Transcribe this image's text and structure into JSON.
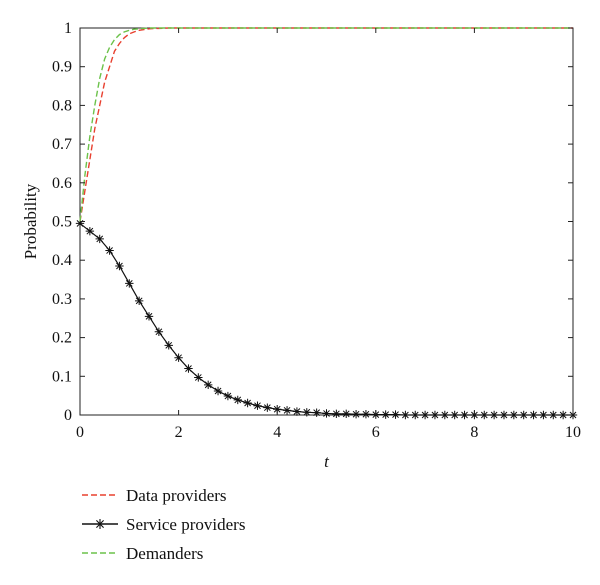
{
  "chart_data": {
    "type": "line",
    "xlabel": "t",
    "ylabel": "Probability",
    "xlim": [
      0,
      10
    ],
    "ylim": [
      0,
      1
    ],
    "x_ticks": [
      "0",
      "2",
      "4",
      "6",
      "8",
      "10"
    ],
    "y_ticks": [
      "0",
      "0.1",
      "0.2",
      "0.3",
      "0.4",
      "0.5",
      "0.6",
      "0.7",
      "0.8",
      "0.9",
      "1"
    ],
    "grid": false,
    "legend_position": "bottom-left, below plot",
    "series": [
      {
        "name": "Data providers",
        "color": "#e8402f",
        "style": "dashed",
        "x": [
          0,
          0.1,
          0.2,
          0.3,
          0.4,
          0.5,
          0.6,
          0.7,
          0.8,
          0.9,
          1.0,
          1.1,
          1.2,
          1.3,
          1.4,
          1.6,
          1.8,
          2.0,
          3.0,
          4.0,
          5.0,
          6.0,
          7.0,
          8.0,
          9.0,
          10.0
        ],
        "y": [
          0.5,
          0.58,
          0.66,
          0.74,
          0.8,
          0.86,
          0.9,
          0.94,
          0.96,
          0.975,
          0.985,
          0.99,
          0.994,
          0.996,
          0.998,
          0.999,
          1.0,
          1.0,
          1.0,
          1.0,
          1.0,
          1.0,
          1.0,
          1.0,
          1.0,
          1.0
        ]
      },
      {
        "name": "Service providers",
        "color": "#111111",
        "style": "solid-star",
        "x": [
          0,
          0.2,
          0.4,
          0.6,
          0.8,
          1.0,
          1.2,
          1.4,
          1.6,
          1.8,
          2.0,
          2.2,
          2.4,
          2.6,
          2.8,
          3.0,
          3.2,
          3.4,
          3.6,
          3.8,
          4.0,
          4.2,
          4.4,
          4.6,
          4.8,
          5.0,
          5.2,
          5.4,
          5.6,
          5.8,
          6.0,
          6.2,
          6.4,
          6.6,
          6.8,
          7.0,
          7.2,
          7.4,
          7.6,
          7.8,
          8.0,
          8.2,
          8.4,
          8.6,
          8.8,
          9.0,
          9.2,
          9.4,
          9.6,
          9.8,
          10.0
        ],
        "y": [
          0.495,
          0.475,
          0.455,
          0.425,
          0.385,
          0.34,
          0.295,
          0.255,
          0.215,
          0.18,
          0.148,
          0.12,
          0.097,
          0.078,
          0.062,
          0.049,
          0.039,
          0.031,
          0.024,
          0.019,
          0.015,
          0.012,
          0.009,
          0.007,
          0.006,
          0.004,
          0.003,
          0.003,
          0.002,
          0.002,
          0.001,
          0.001,
          0.001,
          0.0,
          0.0,
          0.0,
          0.0,
          0.0,
          0.0,
          0.0,
          0.0,
          0.0,
          0.0,
          0.0,
          0.0,
          0.0,
          0.0,
          0.0,
          0.0,
          0.0,
          0.0
        ]
      },
      {
        "name": "Demanders",
        "color": "#6cc24a",
        "style": "dashed",
        "x": [
          0,
          0.1,
          0.2,
          0.3,
          0.4,
          0.5,
          0.6,
          0.7,
          0.8,
          0.9,
          1.0,
          1.1,
          1.2,
          1.3,
          1.4,
          1.6,
          1.8,
          2.0,
          3.0,
          4.0,
          5.0,
          6.0,
          7.0,
          8.0,
          9.0,
          10.0
        ],
        "y": [
          0.5,
          0.62,
          0.72,
          0.8,
          0.87,
          0.92,
          0.95,
          0.97,
          0.983,
          0.99,
          0.994,
          0.997,
          0.998,
          0.999,
          1.0,
          1.0,
          1.0,
          1.0,
          1.0,
          1.0,
          1.0,
          1.0,
          1.0,
          1.0,
          1.0,
          1.0
        ]
      }
    ]
  }
}
